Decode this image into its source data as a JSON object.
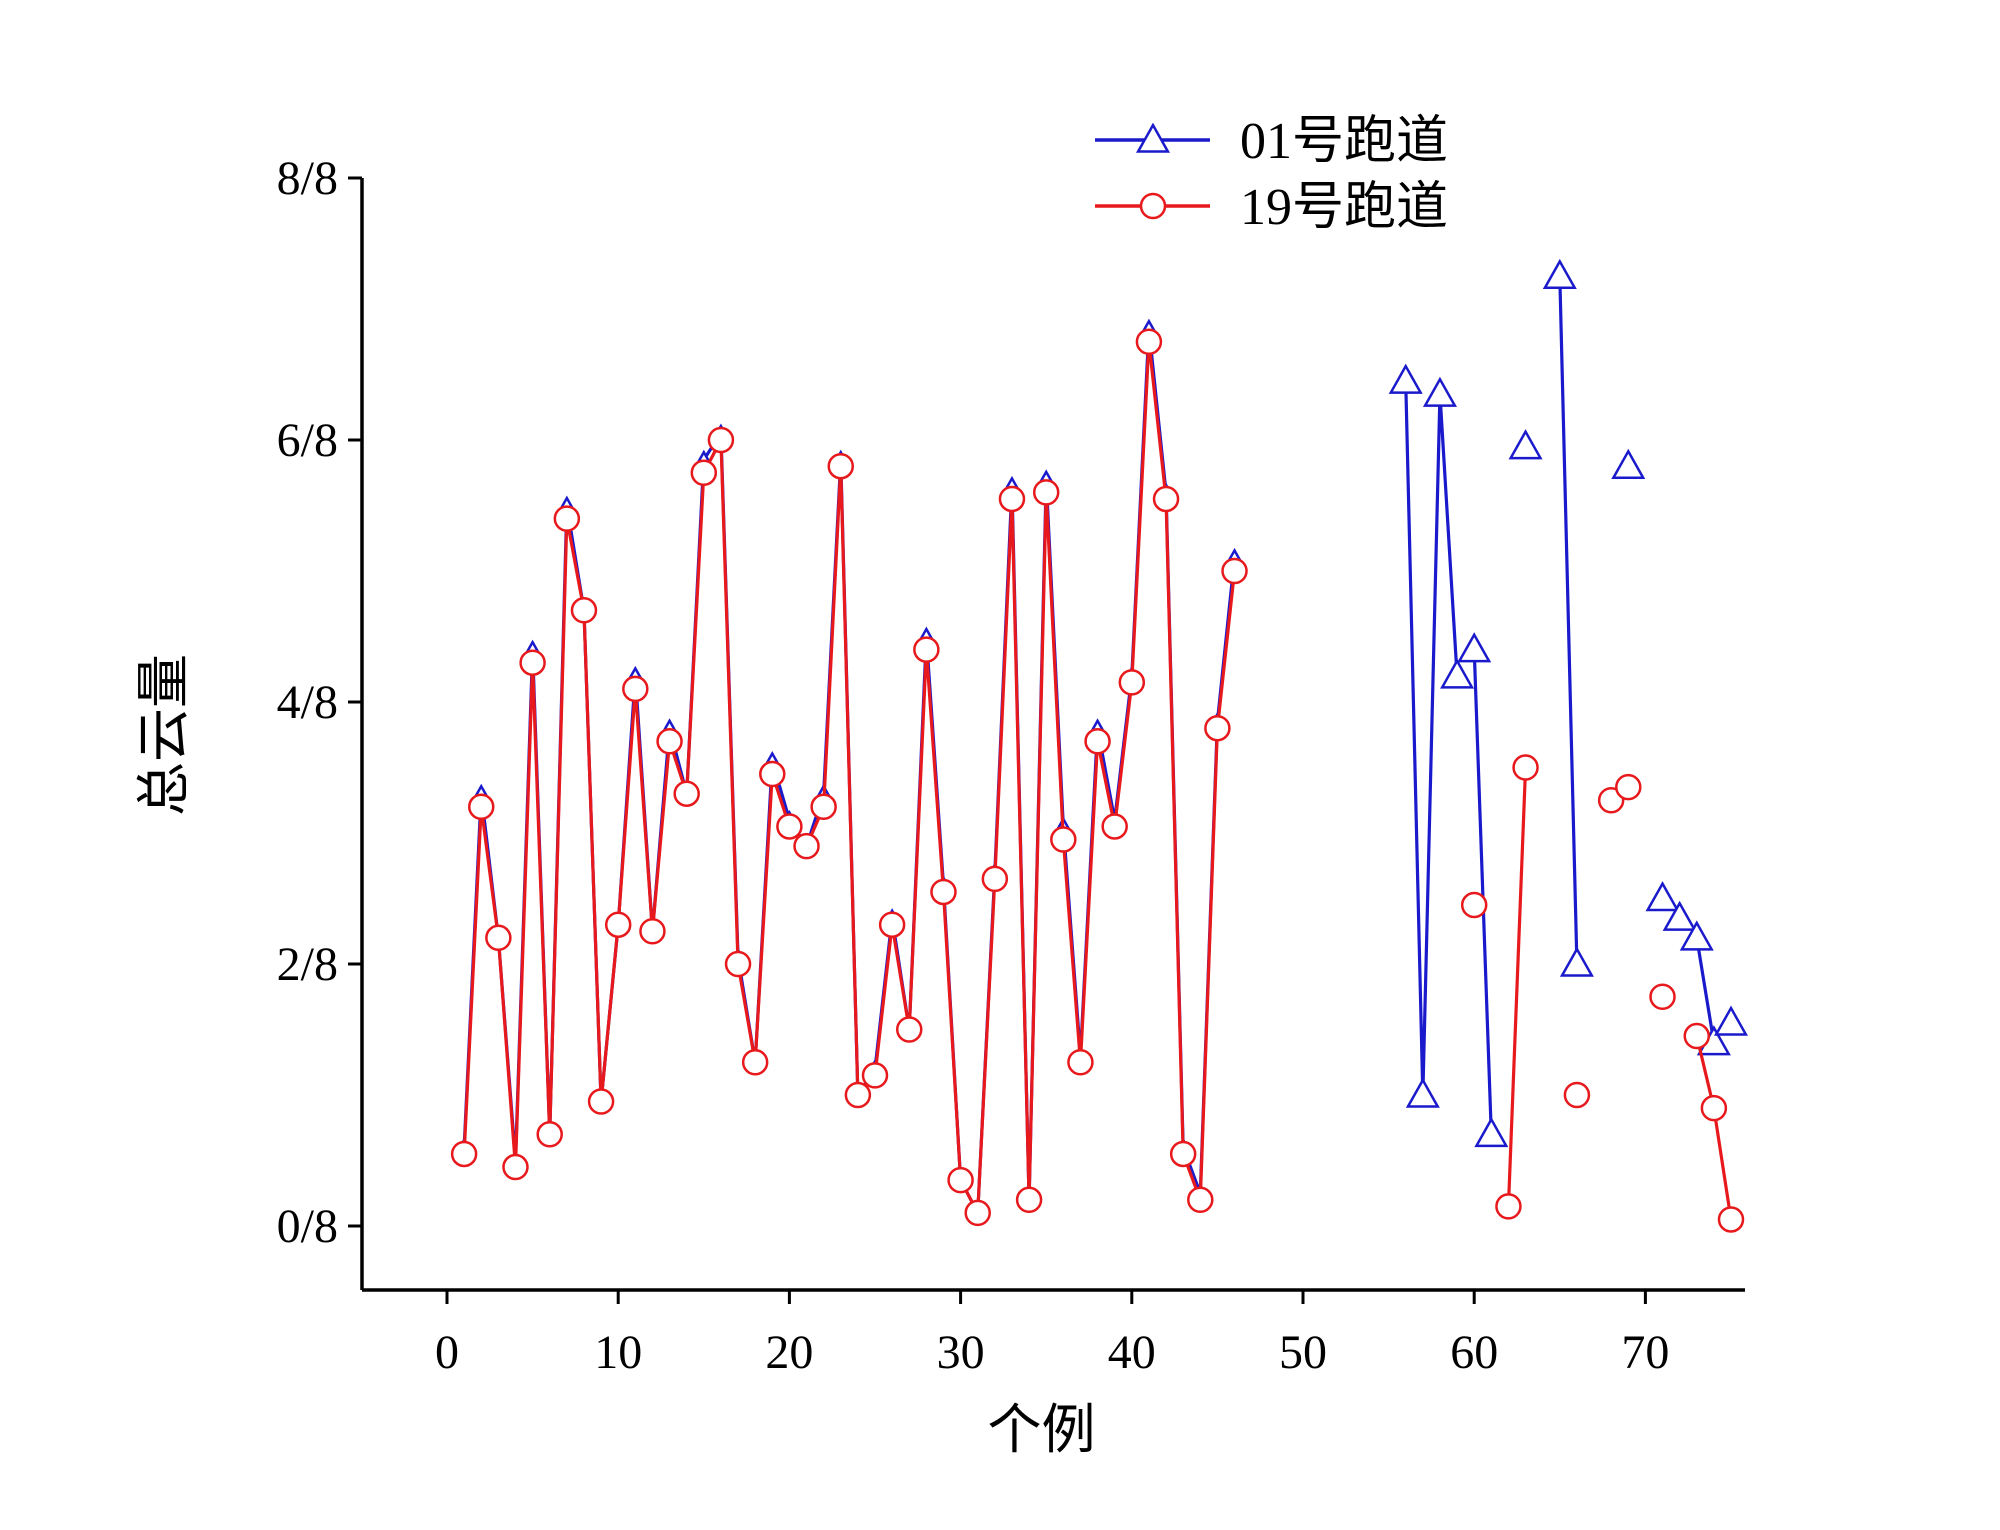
{
  "colors": {
    "series_01": "#1a1acc",
    "series_19": "#e8191c",
    "axis": "#000000"
  },
  "chart_data": {
    "type": "line",
    "xlabel": "个例",
    "ylabel": "总云量",
    "xlim": [
      -5,
      76
    ],
    "ylim": [
      -0.5,
      8
    ],
    "x_ticks": [
      0,
      10,
      20,
      30,
      40,
      50,
      60,
      70
    ],
    "x_tick_labels": [
      "0",
      "10",
      "20",
      "30",
      "40",
      "50",
      "60",
      "70"
    ],
    "y_ticks": [
      0,
      2,
      4,
      6,
      8
    ],
    "y_tick_labels": [
      "0/8",
      "2/8",
      "4/8",
      "6/8",
      "8/8"
    ],
    "legend_position": "top-right",
    "series": [
      {
        "name": "01号跑道",
        "marker": "triangle",
        "color": "#1a1acc",
        "points": [
          [
            1,
            0.6
          ],
          [
            2,
            3.3
          ],
          [
            3,
            2.2
          ],
          [
            4,
            0.5
          ],
          [
            5,
            4.4
          ],
          [
            6,
            0.7
          ],
          [
            7,
            5.5
          ],
          [
            8,
            4.7
          ],
          [
            9,
            0.95
          ],
          [
            10,
            2.3
          ],
          [
            11,
            4.2
          ],
          [
            12,
            2.25
          ],
          [
            13,
            3.8
          ],
          [
            14,
            3.3
          ],
          [
            15,
            5.85
          ],
          [
            16,
            6.05
          ],
          [
            17,
            2.05
          ],
          [
            18,
            1.25
          ],
          [
            19,
            3.55
          ],
          [
            20,
            3.1
          ],
          [
            21,
            2.9
          ],
          [
            22,
            3.3
          ],
          [
            23,
            5.85
          ],
          [
            24,
            1.0
          ],
          [
            25,
            1.2
          ],
          [
            26,
            2.35
          ],
          [
            27,
            1.5
          ],
          [
            28,
            4.5
          ],
          [
            29,
            2.6
          ],
          [
            30,
            0.35
          ],
          [
            31,
            0.1
          ],
          [
            32,
            2.7
          ],
          [
            33,
            5.65
          ],
          [
            34,
            0.2
          ],
          [
            35,
            5.7
          ],
          [
            36,
            3.05
          ],
          [
            37,
            1.3
          ],
          [
            38,
            3.8
          ],
          [
            39,
            3.1
          ],
          [
            40,
            4.2
          ],
          [
            41,
            6.85
          ],
          [
            42,
            5.6
          ],
          [
            43,
            0.6
          ],
          [
            44,
            0.25
          ],
          [
            45,
            3.85
          ],
          [
            46,
            5.1
          ],
          [
            56,
            6.45
          ],
          [
            57,
            1.0
          ],
          [
            58,
            6.35
          ],
          [
            59,
            4.2
          ],
          [
            60,
            4.4
          ],
          [
            61,
            0.7
          ],
          [
            63,
            5.95
          ],
          [
            65,
            7.25
          ],
          [
            66,
            2.0
          ],
          [
            69,
            5.8
          ],
          [
            71,
            2.5
          ],
          [
            72,
            2.35
          ],
          [
            73,
            2.2
          ],
          [
            74,
            1.4
          ],
          [
            75,
            1.55
          ]
        ],
        "segments": [
          [
            56,
            57,
            58,
            59
          ],
          [
            60,
            61
          ],
          [
            65,
            66
          ],
          [
            73,
            74
          ]
        ]
      },
      {
        "name": "19号跑道",
        "marker": "circle",
        "color": "#e8191c",
        "points": [
          [
            1,
            0.55
          ],
          [
            2,
            3.2
          ],
          [
            3,
            2.2
          ],
          [
            4,
            0.45
          ],
          [
            5,
            4.3
          ],
          [
            6,
            0.7
          ],
          [
            7,
            5.4
          ],
          [
            8,
            4.7
          ],
          [
            9,
            0.95
          ],
          [
            10,
            2.3
          ],
          [
            11,
            4.1
          ],
          [
            12,
            2.25
          ],
          [
            13,
            3.7
          ],
          [
            14,
            3.3
          ],
          [
            15,
            5.75
          ],
          [
            16,
            6.0
          ],
          [
            17,
            2.0
          ],
          [
            18,
            1.25
          ],
          [
            19,
            3.45
          ],
          [
            20,
            3.05
          ],
          [
            21,
            2.9
          ],
          [
            22,
            3.2
          ],
          [
            23,
            5.8
          ],
          [
            24,
            1.0
          ],
          [
            25,
            1.15
          ],
          [
            26,
            2.3
          ],
          [
            27,
            1.5
          ],
          [
            28,
            4.4
          ],
          [
            29,
            2.55
          ],
          [
            30,
            0.35
          ],
          [
            31,
            0.1
          ],
          [
            32,
            2.65
          ],
          [
            33,
            5.55
          ],
          [
            34,
            0.2
          ],
          [
            35,
            5.6
          ],
          [
            36,
            2.95
          ],
          [
            37,
            1.25
          ],
          [
            38,
            3.7
          ],
          [
            39,
            3.05
          ],
          [
            40,
            4.15
          ],
          [
            41,
            6.75
          ],
          [
            42,
            5.55
          ],
          [
            43,
            0.55
          ],
          [
            44,
            0.2
          ],
          [
            45,
            3.8
          ],
          [
            46,
            5.0
          ],
          [
            60,
            2.45
          ],
          [
            62,
            0.15
          ],
          [
            63,
            3.5
          ],
          [
            66,
            1.0
          ],
          [
            68,
            3.25
          ],
          [
            69,
            3.35
          ],
          [
            71,
            1.75
          ],
          [
            73,
            1.45
          ],
          [
            74,
            0.9
          ],
          [
            75,
            0.05
          ]
        ],
        "segments": [
          [
            62,
            63
          ],
          [
            73,
            74,
            75
          ]
        ]
      }
    ],
    "notes_main_segment_x_range": [
      1,
      46
    ]
  }
}
